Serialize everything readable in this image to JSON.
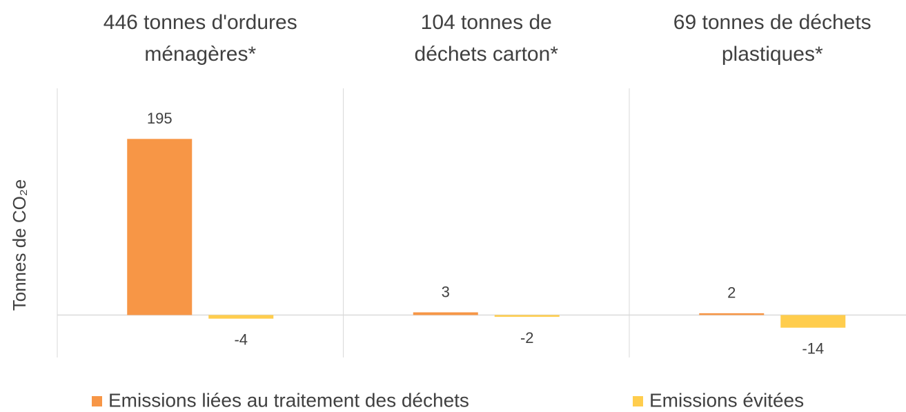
{
  "chart_data": {
    "type": "bar",
    "categories": [
      "446 tonnes d'ordures\nménagères*",
      "104 tonnes de\ndéchets carton*",
      "69 tonnes de déchets\nplastiques*"
    ],
    "y_label": "Tonnes de CO₂e",
    "series": [
      {
        "name": "Emissions liées au traitement des déchets",
        "color": "#f79646",
        "values": [
          195,
          3,
          2
        ]
      },
      {
        "name": "Emissions évitées",
        "color": "#ffcd4d",
        "values": [
          -4,
          -2,
          -14
        ]
      }
    ],
    "ylim": [
      -47,
      251
    ],
    "legend": "bottom"
  }
}
